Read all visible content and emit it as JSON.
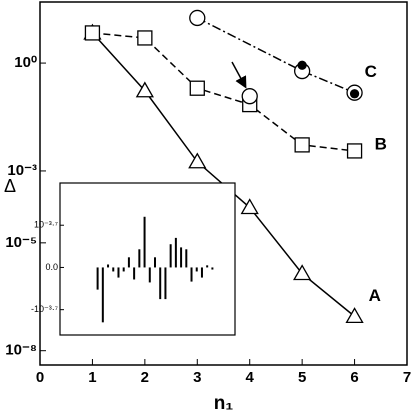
{
  "chart_data": [
    {
      "type": "line",
      "xlabel": "n₁",
      "ylabel": "Δ",
      "log_y": true,
      "xlim": [
        0,
        7
      ],
      "xticks": [
        0,
        1,
        2,
        3,
        4,
        5,
        6,
        7
      ],
      "ylim": [
        4e-09,
        50
      ],
      "yticks": [
        {
          "value": 1,
          "label": "10⁰"
        },
        {
          "value": 0.001,
          "label": "10⁻³"
        },
        {
          "value": 1e-05,
          "label": "10⁻⁵"
        },
        {
          "value": 1e-08,
          "label": "10⁻⁸"
        }
      ],
      "series": [
        {
          "name": "A",
          "color": "#000000",
          "linestyle": "solid",
          "marker": "triangle",
          "x": [
            1,
            2,
            3,
            4,
            5,
            6
          ],
          "values": [
            6.9,
            0.17,
            0.0018,
            9.6e-05,
            1.4e-06,
            9e-08
          ]
        },
        {
          "name": "B",
          "color": "#000000",
          "linestyle": "dashed",
          "marker": "square",
          "x": [
            1,
            2,
            3,
            4,
            5,
            6
          ],
          "values": [
            6.9,
            5,
            0.2,
            0.07,
            0.0053,
            0.0036
          ]
        },
        {
          "name": "C",
          "color": "#000000",
          "linestyle": "dashdot",
          "marker": "circle",
          "x": [
            3,
            5,
            6
          ],
          "values": [
            18,
            0.6,
            0.15
          ]
        },
        {
          "color": "#000000",
          "linestyle": "none",
          "marker": "circle",
          "x": [
            4
          ],
          "values": [
            0.12
          ]
        },
        {
          "color": "#000000",
          "linestyle": "none",
          "marker": "dot",
          "x": [
            5,
            6
          ],
          "values": [
            0.87,
            0.14
          ]
        }
      ]
    },
    {
      "type": "bar",
      "color": "#000000",
      "categories": [
        null,
        null,
        null,
        null,
        null,
        null,
        null,
        null,
        null,
        null,
        null,
        null,
        null,
        null,
        null,
        null,
        null,
        null,
        null,
        null,
        null,
        null,
        null
      ],
      "values": [
        -0.000105,
        -0.00026,
        1.4e-05,
        -1.9e-05,
        -4.8e-05,
        -1.9e-05,
        4.8e-05,
        -5.7e-05,
        8.6e-05,
        0.00024,
        -7.1e-05,
        4.8e-05,
        -0.00015,
        -0.00015,
        0.00011,
        0.00014,
        9.5e-05,
        8.6e-05,
        -6.7e-05,
        -1.9e-05,
        -4.8e-05,
        1e-05,
        -1e-05
      ],
      "ylim": [
        -0.00032,
        0.0004
      ],
      "yticks": [
        {
          "value": 0.0002,
          "label": "10⁻³·⁷"
        },
        {
          "value": 0,
          "label": "0.0"
        },
        {
          "value": -0.0002,
          "label": "-10⁻³·⁷"
        }
      ]
    }
  ]
}
